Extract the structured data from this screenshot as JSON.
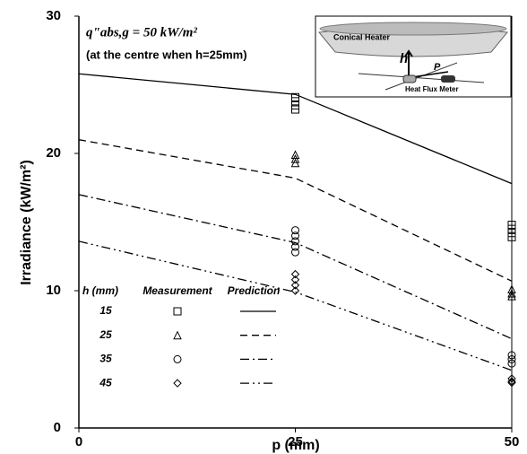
{
  "chart_data": {
    "type": "scatter",
    "y_label": "Irradiance (kW/m²)",
    "x_label": "p (mm)",
    "xlim": [
      0,
      50
    ],
    "xticks": [
      0,
      25,
      50
    ],
    "ylim": [
      0,
      30
    ],
    "yticks": [
      0,
      10,
      20,
      30
    ],
    "annotations": [
      "q\"abs,g = 50 kW/m²",
      "(at the centre when h=25mm)"
    ],
    "legend_headers": [
      "h (mm)",
      "Measurement",
      "Prediction"
    ],
    "inset": {
      "labels": [
        "Conical Heater",
        "h",
        "P",
        "Heat Flux Meter"
      ]
    },
    "series": [
      {
        "name": "15",
        "color": "#000000",
        "marker": "square",
        "line_style": "solid",
        "measured": {
          "x": [
            25,
            25,
            25,
            25,
            50,
            50,
            50,
            50
          ],
          "values": [
            24.1,
            23.8,
            23.5,
            23.2,
            14.8,
            14.5,
            14.2,
            13.9
          ]
        },
        "predicted": {
          "x": [
            0,
            25,
            50
          ],
          "values": [
            25.8,
            24.3,
            17.8
          ]
        }
      },
      {
        "name": "25",
        "color": "#000000",
        "marker": "triangle",
        "line_style": "dashed",
        "measured": {
          "x": [
            25,
            25,
            25,
            50,
            50,
            50
          ],
          "values": [
            19.9,
            19.6,
            19.3,
            10.1,
            9.8,
            9.6
          ]
        },
        "predicted": {
          "x": [
            0,
            25,
            50
          ],
          "values": [
            21.0,
            18.2,
            10.7
          ]
        }
      },
      {
        "name": "35",
        "color": "#000000",
        "marker": "circle",
        "line_style": "dashdot",
        "measured": {
          "x": [
            25,
            25,
            25,
            25,
            25,
            50,
            50,
            50
          ],
          "values": [
            14.4,
            14.0,
            13.6,
            13.2,
            12.8,
            5.3,
            5.0,
            4.7
          ]
        },
        "predicted": {
          "x": [
            0,
            25,
            50
          ],
          "values": [
            17.0,
            13.5,
            6.5
          ]
        }
      },
      {
        "name": "45",
        "color": "#000000",
        "marker": "diamond",
        "line_style": "dashdotdot",
        "measured": {
          "x": [
            25,
            25,
            25,
            25,
            50,
            50,
            50
          ],
          "values": [
            11.2,
            10.8,
            10.4,
            10.0,
            3.6,
            3.4,
            3.3
          ]
        },
        "predicted": {
          "x": [
            0,
            25,
            50
          ],
          "values": [
            13.6,
            9.9,
            4.2
          ]
        }
      }
    ]
  }
}
